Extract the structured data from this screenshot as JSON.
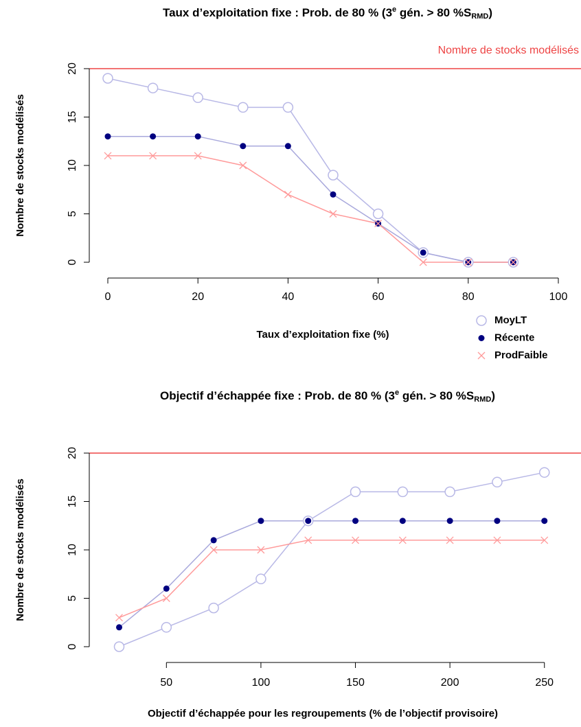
{
  "chart_data": [
    {
      "type": "line",
      "title": [
        "Taux d’exploitation fixe : Prob. de 80 % (3",
        "e",
        " gén. > 80 %S",
        "RMD",
        ")"
      ],
      "xlabel": "Taux d’exploitation fixe (%)",
      "ylabel": "Nombre de stocks modélisés",
      "x": [
        0,
        10,
        20,
        30,
        40,
        50,
        60,
        70,
        80,
        90
      ],
      "xlim": [
        -4,
        104
      ],
      "ylim": [
        -0.8,
        20.8
      ],
      "xticks": [
        0,
        20,
        40,
        60,
        80,
        100
      ],
      "yticks": [
        0,
        5,
        10,
        15,
        20
      ],
      "hline": 20,
      "hline_color": "#ee4444",
      "hline_label": "Nombre de stocks modélisés",
      "legend": true,
      "series": [
        {
          "name": "MoyLT",
          "marker": "open-circle",
          "color": "#b8b8e6",
          "line_color": "#b8b8e6",
          "values": [
            19,
            18,
            17,
            16,
            16,
            9,
            5,
            1,
            0,
            0
          ]
        },
        {
          "name": "Récente",
          "marker": "dot",
          "color": "#000080",
          "line_color": "#a8a8dc",
          "values": [
            13,
            13,
            13,
            12,
            12,
            7,
            4,
            1,
            0,
            0
          ]
        },
        {
          "name": "ProdFaible",
          "marker": "cross",
          "color": "#ff9a9a",
          "line_color": "#ff9a9a",
          "values": [
            11,
            11,
            11,
            10,
            7,
            5,
            4,
            0,
            0,
            0
          ]
        }
      ]
    },
    {
      "type": "line",
      "title": [
        "Objectif d’échappée fixe : Prob. de 80 % (3",
        "e",
        " gén. > 80 %S",
        "RMD",
        ")"
      ],
      "xlabel": "Objectif d’échappée pour les regroupements (% de l’objectif provisoire)",
      "ylabel": "Nombre de stocks modélisés",
      "x": [
        25,
        50,
        75,
        100,
        125,
        150,
        175,
        200,
        225,
        250
      ],
      "xlim": [
        15,
        261
      ],
      "ylim": [
        -0.8,
        20.8
      ],
      "xticks": [
        50,
        100,
        150,
        200,
        250
      ],
      "yticks": [
        0,
        5,
        10,
        15,
        20
      ],
      "hline": 20,
      "hline_color": "#ee4444",
      "series": [
        {
          "marker": "open-circle",
          "color": "#b8b8e6",
          "line_color": "#b8b8e6",
          "values": [
            0,
            2,
            4,
            7,
            13,
            16,
            16,
            16,
            17,
            18
          ]
        },
        {
          "marker": "dot",
          "color": "#000080",
          "line_color": "#a8a8dc",
          "values": [
            2,
            6,
            11,
            13,
            13,
            13,
            13,
            13,
            13,
            13
          ]
        },
        {
          "marker": "cross",
          "color": "#ff9a9a",
          "line_color": "#ff9a9a",
          "values": [
            3,
            5,
            10,
            10,
            11,
            11,
            11,
            11,
            11,
            11
          ]
        }
      ]
    }
  ]
}
